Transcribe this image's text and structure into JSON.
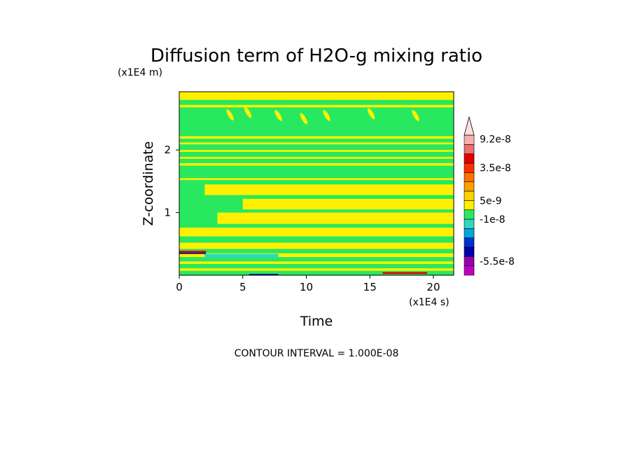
{
  "chart_data": {
    "type": "heatmap",
    "title": "Diffusion term of H2O-g mixing ratio",
    "xlabel": "Time",
    "ylabel": "Z-coordinate",
    "x_scale_label": "(x1E4 s)",
    "y_scale_label": "(x1E4 m)",
    "xlim": [
      0,
      21.6
    ],
    "ylim": [
      0,
      2.93
    ],
    "x_ticks": [
      0,
      5,
      10,
      15,
      20
    ],
    "x_tick_labels": [
      "0",
      "5",
      "10",
      "15",
      "20"
    ],
    "y_ticks": [
      1,
      2
    ],
    "y_tick_labels": [
      "1",
      "2"
    ],
    "footer": "CONTOUR INTERVAL = 1.000E-08",
    "colorbar": {
      "labels": [
        "9.2e-8",
        "3.5e-8",
        "5e-9",
        "-1e-8",
        "-5.5e-8"
      ],
      "label_values": [
        9.2e-08,
        3.5e-08,
        5e-09,
        -1e-08,
        -5.5e-08
      ],
      "levels": [
        {
          "max": -6e-08,
          "color": "#c000c0"
        },
        {
          "max": -5e-08,
          "color": "#9800b0"
        },
        {
          "max": -4e-08,
          "color": "#0000a8"
        },
        {
          "max": -3e-08,
          "color": "#0030d0"
        },
        {
          "max": -2e-08,
          "color": "#00a8d8"
        },
        {
          "max": -1e-08,
          "color": "#30d8c0"
        },
        {
          "max": 0,
          "color": "#28e860"
        },
        {
          "max": 5e-09,
          "color": "#fff000"
        },
        {
          "max": 1e-08,
          "color": "#ffd000"
        },
        {
          "max": 2e-08,
          "color": "#ffa000"
        },
        {
          "max": 3e-08,
          "color": "#ff7000"
        },
        {
          "max": 4e-08,
          "color": "#ff3000"
        },
        {
          "max": 6e-08,
          "color": "#e00000"
        },
        {
          "max": 8e-08,
          "color": "#f07070"
        },
        {
          "max": 1e-07,
          "color": "#f8b0b0"
        },
        {
          "max": null,
          "color": "#ffe0e0"
        }
      ]
    },
    "field_colors": {
      "background": "#28e860",
      "positive_band": "#fff000",
      "negative_band": "#30d8c0",
      "strong_negative": "#0000a8",
      "strong_positive": "#e00000"
    },
    "bands": [
      {
        "z0": 2.8,
        "z1": 2.93,
        "t0": 0,
        "t1": 21.6,
        "kind": "positive_band"
      },
      {
        "z0": 2.68,
        "z1": 2.72,
        "t0": 0,
        "t1": 21.6,
        "kind": "positive_band"
      },
      {
        "z0": 2.18,
        "z1": 2.22,
        "t0": 0,
        "t1": 21.6,
        "kind": "positive_band"
      },
      {
        "z0": 2.09,
        "z1": 2.12,
        "t0": 0,
        "t1": 21.6,
        "kind": "positive_band"
      },
      {
        "z0": 1.97,
        "z1": 2.0,
        "t0": 0,
        "t1": 21.6,
        "kind": "positive_band"
      },
      {
        "z0": 1.86,
        "z1": 1.89,
        "t0": 0,
        "t1": 21.6,
        "kind": "positive_band"
      },
      {
        "z0": 1.75,
        "z1": 1.79,
        "t0": 0,
        "t1": 21.6,
        "kind": "positive_band"
      },
      {
        "z0": 1.52,
        "z1": 1.55,
        "t0": 0,
        "t1": 21.6,
        "kind": "positive_band"
      },
      {
        "z0": 1.28,
        "z1": 1.45,
        "t0": 2.0,
        "t1": 21.6,
        "kind": "positive_band"
      },
      {
        "z0": 1.05,
        "z1": 1.22,
        "t0": 5.0,
        "t1": 21.6,
        "kind": "positive_band"
      },
      {
        "z0": 0.82,
        "z1": 1.0,
        "t0": 3.0,
        "t1": 21.6,
        "kind": "positive_band"
      },
      {
        "z0": 0.62,
        "z1": 0.76,
        "t0": 0,
        "t1": 21.6,
        "kind": "positive_band"
      },
      {
        "z0": 0.42,
        "z1": 0.52,
        "t0": 0,
        "t1": 21.6,
        "kind": "positive_band"
      },
      {
        "z0": 0.29,
        "z1": 0.35,
        "t0": 0,
        "t1": 21.6,
        "kind": "positive_band"
      },
      {
        "z0": 0.18,
        "z1": 0.22,
        "t0": 0,
        "t1": 21.6,
        "kind": "positive_band"
      },
      {
        "z0": 0.07,
        "z1": 0.11,
        "t0": 0,
        "t1": 21.6,
        "kind": "positive_band"
      },
      {
        "z0": 0.36,
        "z1": 0.39,
        "t0": 0,
        "t1": 2.1,
        "kind": "strong_positive"
      },
      {
        "z0": 0.34,
        "z1": 0.36,
        "t0": 0,
        "t1": 2.1,
        "kind": "strong_negative"
      },
      {
        "z0": 0.28,
        "z1": 0.34,
        "t0": 2.0,
        "t1": 7.8,
        "kind": "negative_band"
      },
      {
        "z0": 0.02,
        "z1": 0.05,
        "t0": 16.0,
        "t1": 19.5,
        "kind": "strong_positive"
      },
      {
        "z0": 0.0,
        "z1": 0.02,
        "t0": 5.5,
        "t1": 7.8,
        "kind": "strong_negative"
      }
    ],
    "spots": [
      {
        "t": 4.0,
        "z": 2.56,
        "kind": "positive_band"
      },
      {
        "t": 5.4,
        "z": 2.6,
        "kind": "positive_band"
      },
      {
        "t": 7.8,
        "z": 2.55,
        "kind": "positive_band"
      },
      {
        "t": 9.8,
        "z": 2.5,
        "kind": "positive_band"
      },
      {
        "t": 11.6,
        "z": 2.55,
        "kind": "positive_band"
      },
      {
        "t": 15.1,
        "z": 2.58,
        "kind": "positive_band"
      },
      {
        "t": 18.6,
        "z": 2.55,
        "kind": "positive_band"
      }
    ]
  }
}
